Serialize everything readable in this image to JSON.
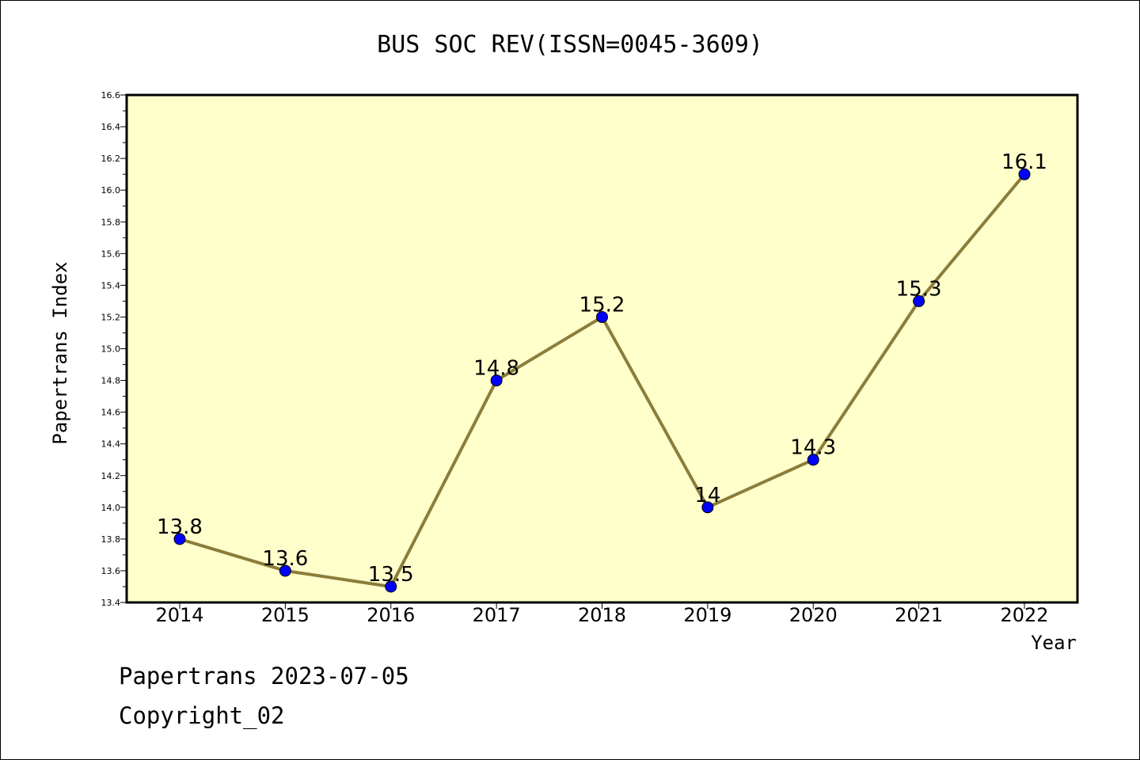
{
  "chart_data": {
    "type": "line",
    "title": "BUS SOC REV(ISSN=0045-3609)",
    "xlabel": "Year",
    "ylabel": "Papertrans Index",
    "categories": [
      "2014",
      "2015",
      "2016",
      "2017",
      "2018",
      "2019",
      "2020",
      "2021",
      "2022"
    ],
    "series": [
      {
        "values": [
          13.8,
          13.6,
          13.5,
          14.8,
          15.2,
          14.0,
          14.3,
          15.3,
          16.1
        ],
        "data_labels": [
          "13.8",
          "13.6",
          "13.5",
          "14.8",
          "15.2",
          "14",
          "14.3",
          "15.3",
          "16.1"
        ]
      }
    ],
    "ylim": [
      13.4,
      16.6
    ],
    "yticks": [
      "13.4",
      "13.6",
      "13.8",
      "14.0",
      "14.2",
      "14.4",
      "14.6",
      "14.8",
      "15.0",
      "15.2",
      "15.4",
      "15.6",
      "15.8",
      "16.0",
      "16.2",
      "16.4",
      "16.6"
    ],
    "grid": false,
    "colors": {
      "plot_background": "#ffffcc",
      "line": "#8b7d3a",
      "marker": "#0000ff"
    }
  },
  "footer": {
    "line1": "Papertrans 2023-07-05",
    "line2": "Copyright_02"
  }
}
